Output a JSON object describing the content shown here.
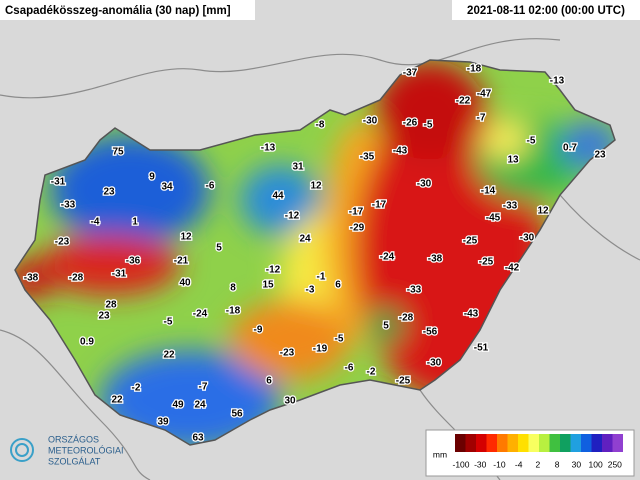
{
  "header": {
    "title": "Csapadékösszeg-anomália (30 nap) [mm]",
    "timestamp": "2021-08-11 02:00 (00:00 UTC)"
  },
  "logo": {
    "lines": [
      "ORSZÁGOS",
      "METEOROLÓGIAI",
      "SZOLGÁLAT"
    ]
  },
  "legend": {
    "unit": "mm",
    "labels": [
      "-100",
      "-30",
      "-10",
      "-4",
      "2",
      "8",
      "30",
      "100",
      "250"
    ]
  },
  "stations": [
    "-37",
    "-18",
    "-13",
    "-22",
    "-47",
    "-7",
    "-30",
    "-26",
    "-5",
    "-5",
    "13",
    "0.7",
    "23",
    "-8",
    "-13",
    "-35",
    "-43",
    "75",
    "31",
    "9",
    "34",
    "-6",
    "12",
    "44",
    "-30",
    "-14",
    "-33",
    "12",
    "-31",
    "23",
    "-33",
    "-4",
    "1",
    "-12",
    "-17",
    "-17",
    "-45",
    "-29",
    "24",
    "12",
    "-23",
    "-25",
    "-30",
    "5",
    "-36",
    "-21",
    "-24",
    "-38",
    "-25",
    "-42",
    "-38",
    "-28",
    "-31",
    "-12",
    "-1",
    "40",
    "15",
    "8",
    "-3",
    "6",
    "-33",
    "28",
    "23",
    "-24",
    "-18",
    "-5",
    "-43",
    "-28",
    "5",
    "-56",
    "-9",
    "0.9",
    "-5",
    "-51",
    "-23",
    "-19",
    "22",
    "-30",
    "-6",
    "-2",
    "-25",
    "6",
    "-7",
    "-2",
    "30",
    "22",
    "49",
    "24",
    "56",
    "39",
    "63"
  ]
}
